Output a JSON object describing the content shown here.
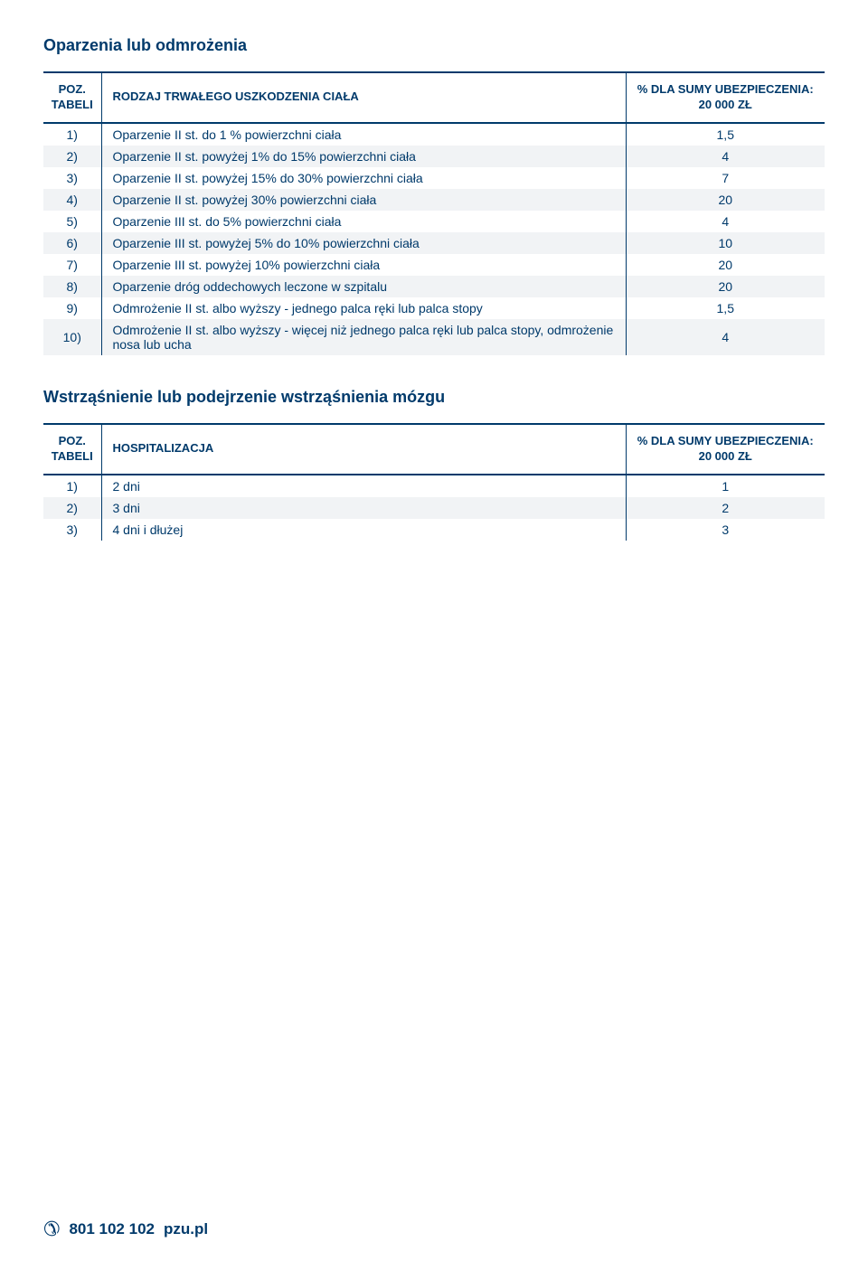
{
  "colors": {
    "primary": "#003a6b",
    "row_alt_bg": "#f1f3f5",
    "background": "#ffffff"
  },
  "section1": {
    "title": "Oparzenia lub odmrożenia",
    "columns": {
      "pos": "POZ.\nTABELI",
      "desc": "RODZAJ TRWAŁEGO USZKODZENIA CIAŁA",
      "pct": "% DLA SUMY UBEZPIECZENIA:\n20 000 ZŁ"
    },
    "rows": [
      {
        "pos": "1)",
        "desc": "Oparzenie II st. do 1 % powierzchni ciała",
        "pct": "1,5"
      },
      {
        "pos": "2)",
        "desc": "Oparzenie II st. powyżej 1% do 15% powierzchni ciała",
        "pct": "4"
      },
      {
        "pos": "3)",
        "desc": "Oparzenie II st. powyżej 15% do 30% powierzchni ciała",
        "pct": "7"
      },
      {
        "pos": "4)",
        "desc": "Oparzenie II st. powyżej 30% powierzchni ciała",
        "pct": "20"
      },
      {
        "pos": "5)",
        "desc": "Oparzenie III st. do 5% powierzchni ciała",
        "pct": "4"
      },
      {
        "pos": "6)",
        "desc": "Oparzenie III st. powyżej 5% do 10% powierzchni ciała",
        "pct": "10"
      },
      {
        "pos": "7)",
        "desc": "Oparzenie III st. powyżej 10% powierzchni ciała",
        "pct": "20"
      },
      {
        "pos": "8)",
        "desc": "Oparzenie dróg oddechowych leczone w szpitalu",
        "pct": "20"
      },
      {
        "pos": "9)",
        "desc": "Odmrożenie II st. albo wyższy - jednego palca ręki lub palca stopy",
        "pct": "1,5"
      },
      {
        "pos": "10)",
        "desc": "Odmrożenie II st. albo wyższy - więcej niż jednego palca ręki lub palca stopy, odmrożenie nosa lub ucha",
        "pct": "4"
      }
    ]
  },
  "section2": {
    "title": "Wstrząśnienie lub podejrzenie wstrząśnienia mózgu",
    "columns": {
      "pos": "POZ.\nTABELI",
      "desc": "HOSPITALIZACJA",
      "pct": "% DLA SUMY UBEZPIECZENIA:\n20 000 ZŁ"
    },
    "rows": [
      {
        "pos": "1)",
        "desc": "2 dni",
        "pct": "1"
      },
      {
        "pos": "2)",
        "desc": "3 dni",
        "pct": "2"
      },
      {
        "pos": "3)",
        "desc": "4 dni i dłużej",
        "pct": "3"
      }
    ]
  },
  "footer": {
    "phone": "801 102 102",
    "site": "pzu.pl"
  }
}
